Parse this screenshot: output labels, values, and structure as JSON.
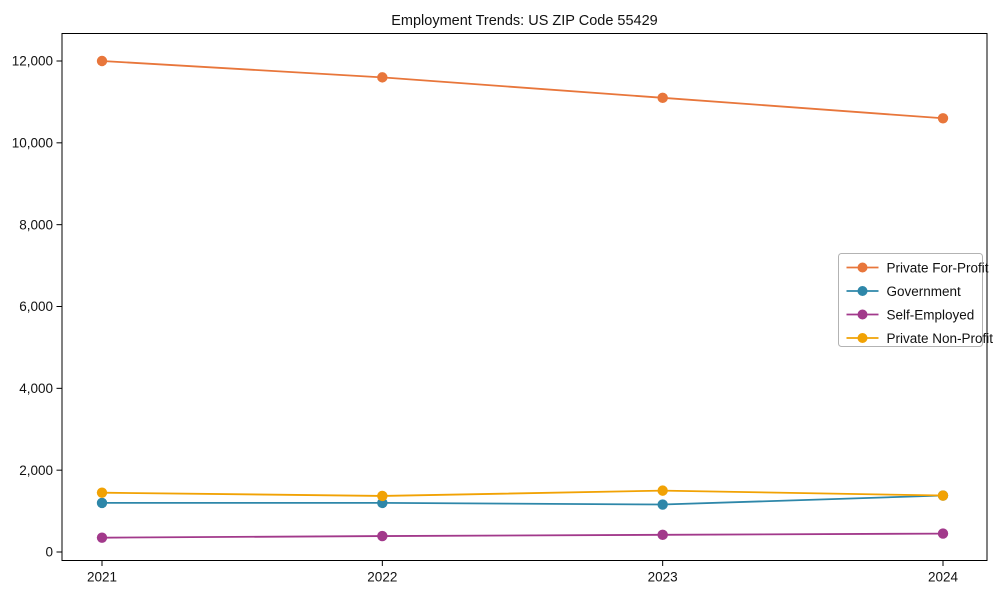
{
  "window": {
    "background": "#ffffff"
  },
  "chart_data": {
    "type": "line",
    "title": "Employment Trends: US ZIP Code 55429",
    "x": [
      2021,
      2022,
      2023,
      2024
    ],
    "x_tick_labels": [
      "2021",
      "2022",
      "2023",
      "2024"
    ],
    "series": [
      {
        "name": "Private For-Profit",
        "color": "#e8763b",
        "values": [
          12000,
          11600,
          11100,
          10600
        ]
      },
      {
        "name": "Government",
        "color": "#2e87a9",
        "values": [
          1200,
          1200,
          1160,
          1380
        ]
      },
      {
        "name": "Self-Employed",
        "color": "#a2398b",
        "values": [
          350,
          390,
          420,
          450
        ]
      },
      {
        "name": "Private Non-Profit",
        "color": "#f1a204",
        "values": [
          1450,
          1370,
          1500,
          1380
        ]
      }
    ],
    "yticks": [
      0,
      2000,
      4000,
      6000,
      8000,
      10000,
      12000
    ],
    "ytick_labels": [
      "0",
      "2,000",
      "4,000",
      "6,000",
      "8,000",
      "10,000",
      "12,000"
    ],
    "ylim": [
      -200,
      12680
    ],
    "xlabel": "",
    "ylabel": "",
    "grid": false,
    "legend_position": "center-right",
    "marker": "circle",
    "line_width": 1.8,
    "marker_radius": 5.2,
    "axis_color": "#000000",
    "text_color": "#111111",
    "legend_border_color": "#b3b3b3",
    "legend_background": "#ffffff"
  }
}
